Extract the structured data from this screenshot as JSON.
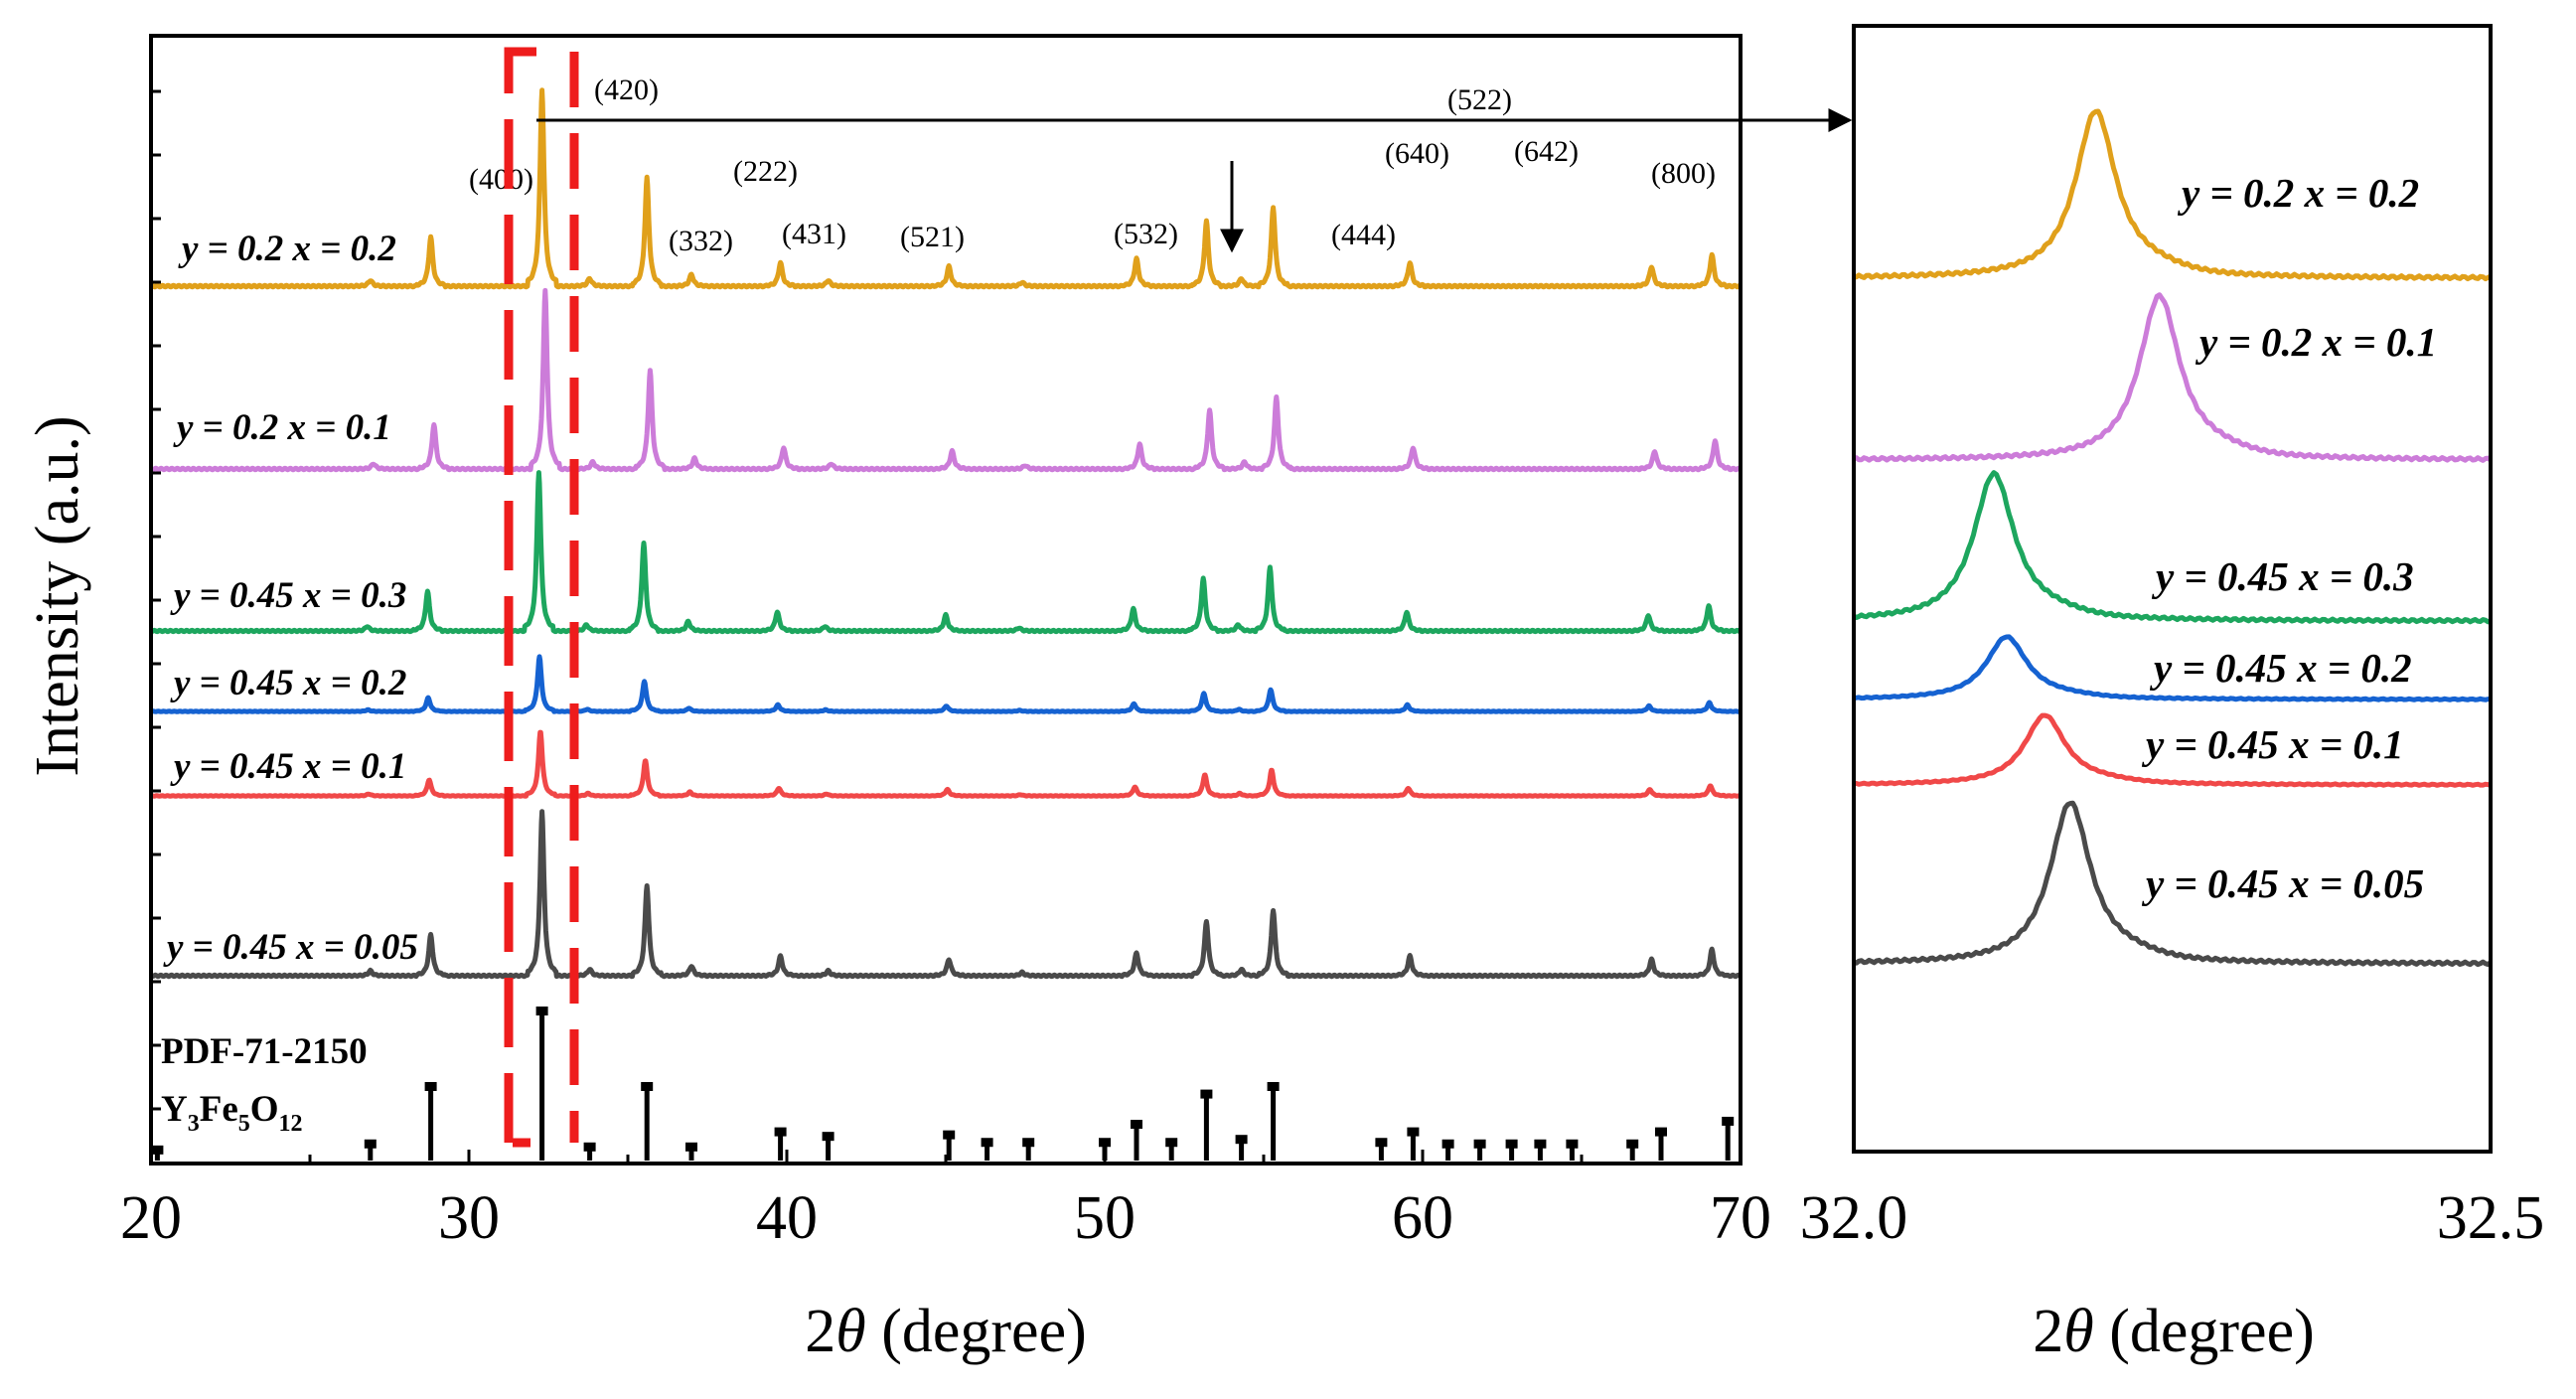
{
  "chart_data": [
    {
      "type": "line",
      "panel": "main",
      "xlabel_prefix": "2",
      "xlabel_symbol": "θ",
      "xlabel_suffix": " (degree)",
      "ylabel": "Intensity (a.u.)",
      "xlim": [
        20,
        70
      ],
      "xticks": [
        "20",
        "30",
        "40",
        "50",
        "60",
        "70"
      ],
      "peaks_2theta": [
        26.9,
        28.8,
        32.3,
        33.8,
        35.6,
        37.0,
        39.8,
        41.3,
        45.1,
        47.4,
        51.0,
        53.2,
        54.3,
        55.3,
        59.6,
        67.2,
        69.1
      ],
      "peak_rel_intensity": [
        0.03,
        0.25,
        1.0,
        0.04,
        0.55,
        0.06,
        0.12,
        0.03,
        0.1,
        0.02,
        0.14,
        0.33,
        0.04,
        0.4,
        0.12,
        0.1,
        0.16
      ],
      "series": [
        {
          "label_y": "y = 0.2",
          "label_x": "x = 0.2",
          "color": "#E0A01B"
        },
        {
          "label_y": "y = 0.2",
          "label_x": "x = 0.1",
          "color": "#CC7CD9"
        },
        {
          "label_y": "y = 0.45",
          "label_x": "x = 0.3",
          "color": "#1DA65E"
        },
        {
          "label_y": "y = 0.45",
          "label_x": "x = 0.2",
          "color": "#1562D1"
        },
        {
          "label_y": "y = 0.45",
          "label_x": "x = 0.1",
          "color": "#F04848"
        },
        {
          "label_y": "y = 0.45",
          "label_x": "x = 0.05",
          "color": "#4A4A4A"
        }
      ],
      "reference": {
        "card": "PDF-71-2150",
        "formula": [
          "Y",
          "3",
          "Fe",
          "5",
          "O",
          "12"
        ],
        "lines_2theta": [
          20.2,
          26.9,
          28.8,
          32.3,
          33.8,
          35.6,
          37.0,
          39.8,
          41.3,
          45.1,
          46.3,
          47.6,
          50.0,
          51.0,
          52.1,
          53.2,
          54.3,
          55.3,
          58.7,
          59.7,
          60.8,
          61.8,
          62.8,
          63.7,
          64.7,
          66.6,
          67.5,
          69.6
        ],
        "lines_rel": [
          0.08,
          0.12,
          0.5,
          1.0,
          0.1,
          0.5,
          0.1,
          0.2,
          0.17,
          0.18,
          0.13,
          0.13,
          0.13,
          0.25,
          0.13,
          0.45,
          0.15,
          0.5,
          0.13,
          0.2,
          0.12,
          0.12,
          0.12,
          0.12,
          0.12,
          0.12,
          0.2,
          0.27
        ]
      },
      "hkl_labels": [
        "(400)",
        "(420)",
        "(222)",
        "(332)",
        "(431)",
        "(521)",
        "(532)",
        "(522)",
        "(640)",
        "(642)",
        "(444)",
        "(800)"
      ],
      "zoom_box_2theta": [
        31.3,
        33.3
      ]
    },
    {
      "type": "line",
      "panel": "zoom",
      "xlabel_prefix": "2",
      "xlabel_symbol": "θ",
      "xlabel_suffix": " (degree)",
      "xlim": [
        32.0,
        32.5
      ],
      "xticks": [
        "32.0",
        "32.5"
      ],
      "series": [
        {
          "label_y": "y = 0.2",
          "label_x": "x = 0.2",
          "color": "#E0A01B",
          "peak": 32.19
        },
        {
          "label_y": "y = 0.2",
          "label_x": "x = 0.1",
          "color": "#CC7CD9",
          "peak": 32.24
        },
        {
          "label_y": "y = 0.45",
          "label_x": "x = 0.3",
          "color": "#1DA65E",
          "peak": 32.11
        },
        {
          "label_y": "y = 0.45",
          "label_x": "x = 0.2",
          "color": "#1562D1",
          "peak": 32.12
        },
        {
          "label_y": "y = 0.45",
          "label_x": "x = 0.1",
          "color": "#F04848",
          "peak": 32.15
        },
        {
          "label_y": "y = 0.45",
          "label_x": "x = 0.05",
          "color": "#4A4A4A",
          "peak": 32.17
        }
      ]
    }
  ]
}
